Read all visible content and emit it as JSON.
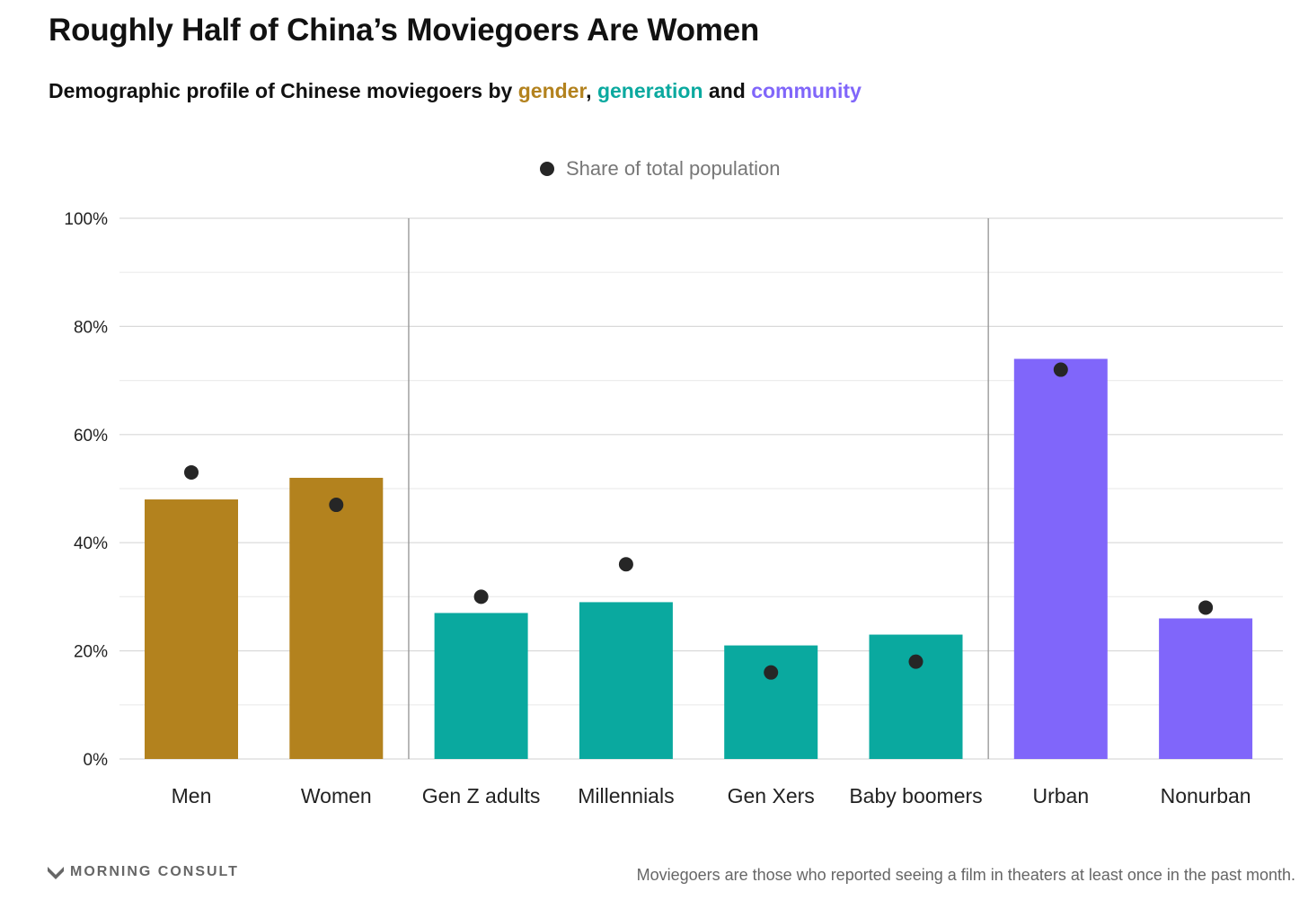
{
  "title": "Roughly Half of China’s Moviegoers Are Women",
  "subtitle": {
    "prefix": "Demographic profile of Chinese moviegoers by ",
    "gender": "gender",
    "sep1": ", ",
    "generation": "generation",
    "sep2": " and ",
    "community": "community"
  },
  "colors": {
    "gender": "#b3821e",
    "generation": "#0aa99f",
    "community": "#8066fa",
    "dot": "#262626"
  },
  "chart_data": {
    "type": "bar",
    "title": "Roughly Half of China’s Moviegoers Are Women",
    "xlabel": "",
    "ylabel": "",
    "ylim": [
      0,
      100
    ],
    "yticks": [
      0,
      20,
      40,
      60,
      80,
      100
    ],
    "ytick_labels": [
      "0%",
      "20%",
      "40%",
      "60%",
      "80%",
      "100%"
    ],
    "categories": [
      "Men",
      "Women",
      "Gen Z adults",
      "Millennials",
      "Gen Xers",
      "Baby boomers",
      "Urban",
      "Nonurban"
    ],
    "groups": [
      "gender",
      "gender",
      "generation",
      "generation",
      "generation",
      "generation",
      "community",
      "community"
    ],
    "series": [
      {
        "name": "Moviegoers",
        "values": [
          48,
          52,
          27,
          29,
          21,
          23,
          74,
          26
        ]
      },
      {
        "name": "Share of total population",
        "values": [
          53,
          47,
          30,
          36,
          16,
          18,
          72,
          28
        ]
      }
    ],
    "legend": {
      "label": "Share of total population",
      "position": "top-center"
    },
    "grid": true
  },
  "footer": {
    "logo": "MORNING CONSULT",
    "note": "Moviegoers are those who reported seeing a film in theaters at least once in the past month."
  }
}
